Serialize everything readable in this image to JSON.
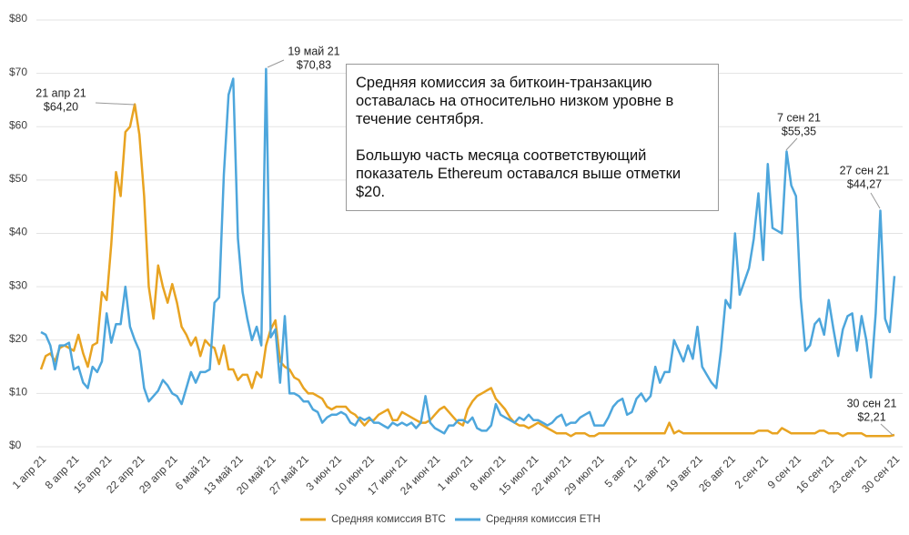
{
  "chart_data": {
    "type": "line",
    "categories": [
      "1 апр 21",
      null,
      null,
      null,
      null,
      null,
      null,
      "8 апр 21",
      null,
      null,
      null,
      null,
      null,
      null,
      "15 апр 21",
      null,
      null,
      null,
      null,
      null,
      null,
      "22 апр 21",
      null,
      null,
      null,
      null,
      null,
      null,
      "29 апр 21",
      null,
      null,
      null,
      null,
      null,
      null,
      "6 май 21",
      null,
      null,
      null,
      null,
      null,
      null,
      "13 май 21",
      null,
      null,
      null,
      null,
      null,
      null,
      "20 май 21",
      null,
      null,
      null,
      null,
      null,
      null,
      "27 май 21",
      null,
      null,
      null,
      null,
      null,
      null,
      "3 июн 21",
      null,
      null,
      null,
      null,
      null,
      null,
      "10 июн 21",
      null,
      null,
      null,
      null,
      null,
      null,
      "17 июн 21",
      null,
      null,
      null,
      null,
      null,
      null,
      "24 июн 21",
      null,
      null,
      null,
      null,
      null,
      null,
      "1 июл 21",
      null,
      null,
      null,
      null,
      null,
      null,
      "8 июл 21",
      null,
      null,
      null,
      null,
      null,
      null,
      "15 июл 21",
      null,
      null,
      null,
      null,
      null,
      null,
      "22 июл 21",
      null,
      null,
      null,
      null,
      null,
      null,
      "29 июл 21",
      null,
      null,
      null,
      null,
      null,
      null,
      "5 авг 21",
      null,
      null,
      null,
      null,
      null,
      null,
      "12 авг 21",
      null,
      null,
      null,
      null,
      null,
      null,
      "19 авг 21",
      null,
      null,
      null,
      null,
      null,
      null,
      "26 авг 21",
      null,
      null,
      null,
      null,
      null,
      null,
      "2 сен 21",
      null,
      null,
      null,
      null,
      null,
      null,
      "9 сен 21",
      null,
      null,
      null,
      null,
      null,
      null,
      "16 сен 21",
      null,
      null,
      null,
      null,
      null,
      null,
      "23 сен 21",
      null,
      null,
      null,
      null,
      null,
      null,
      "30 сен 21"
    ],
    "series": [
      {
        "name": "Средняя комиссия BTC",
        "color": "#e8a321",
        "values": [
          14.5,
          17,
          17.5,
          16,
          18.5,
          19,
          18.5,
          18,
          21,
          17.5,
          15,
          19,
          19.5,
          29,
          27.5,
          38,
          51.5,
          47,
          59,
          60,
          64.2,
          58.5,
          47,
          30,
          24,
          34,
          30,
          27,
          30.5,
          27,
          22.5,
          21,
          19,
          20.5,
          17,
          20,
          19,
          18.5,
          15.5,
          19,
          14.5,
          14.5,
          12.5,
          13.5,
          13.5,
          11,
          14,
          13,
          19,
          22,
          23.7,
          16,
          15,
          14.5,
          13,
          12.5,
          11,
          10,
          10,
          9.5,
          9,
          7.5,
          7,
          7.5,
          7.5,
          7.5,
          6.5,
          6,
          5,
          4,
          5,
          5,
          6,
          6.5,
          7,
          5,
          5,
          6.5,
          6,
          5.5,
          5,
          4.5,
          4.5,
          5,
          6,
          7,
          7.5,
          6.5,
          5.5,
          4.5,
          4,
          7,
          8.5,
          9.5,
          10,
          10.5,
          11,
          9,
          8,
          7,
          5.5,
          4.5,
          4,
          4,
          3.5,
          4,
          4.5,
          4,
          3.5,
          3,
          2.5,
          2.5,
          2.5,
          2,
          2.5,
          2.5,
          2.5,
          2,
          2,
          2.5,
          2.5,
          2.5,
          2.5,
          2.5,
          2.5,
          2.5,
          2.5,
          2.5,
          2.5,
          2.5,
          2.5,
          2.5,
          2.5,
          2.5,
          4.5,
          2.5,
          3,
          2.5,
          2.5,
          2.5,
          2.5,
          2.5,
          2.5,
          2.5,
          2.5,
          2.5,
          2.5,
          2.5,
          2.5,
          2.5,
          2.5,
          2.5,
          2.5,
          3,
          3,
          3,
          2.5,
          2.5,
          3.5,
          3,
          2.5,
          2.5,
          2.5,
          2.5,
          2.5,
          2.5,
          3,
          3,
          2.5,
          2.5,
          2.5,
          2,
          2.5,
          2.5,
          2.5,
          2.5,
          2,
          2,
          2,
          2,
          2,
          2,
          2.21
        ]
      },
      {
        "name": "Средняя комиссия ETH",
        "color": "#4da6dc",
        "values": [
          21.5,
          21,
          19,
          14.5,
          19,
          19,
          19.5,
          14.5,
          15,
          12,
          11,
          15,
          14,
          16,
          25,
          19.5,
          23,
          23,
          30,
          22.5,
          20,
          18,
          11,
          8.5,
          9.5,
          10.5,
          12.5,
          11.5,
          10,
          9.5,
          8,
          11,
          14,
          12,
          14,
          14,
          14.5,
          27,
          28,
          51,
          66,
          69,
          39,
          29,
          24,
          20,
          22.5,
          19,
          70.83,
          20.5,
          22,
          12,
          24.5,
          10,
          10,
          9.5,
          8.5,
          8.5,
          7,
          6.5,
          4.5,
          5.5,
          6,
          6,
          6.5,
          6,
          4.5,
          4,
          5.5,
          5,
          5.5,
          4.5,
          4.5,
          4,
          3.5,
          4.5,
          4,
          4.5,
          4,
          4.5,
          3.5,
          4.5,
          9.5,
          4.5,
          3.5,
          3,
          2.5,
          4,
          4,
          5,
          5,
          4.5,
          5.5,
          3.5,
          3,
          3,
          4,
          8,
          6,
          5.5,
          5,
          4.5,
          5.5,
          5,
          6,
          5,
          5,
          4.5,
          4,
          4.5,
          5.5,
          6,
          4,
          4.5,
          4.5,
          5.5,
          6,
          6.5,
          4,
          4,
          4,
          5.5,
          7.5,
          8.5,
          9,
          6,
          6.5,
          9,
          10,
          8.5,
          9.5,
          15,
          12,
          14,
          14,
          20,
          18,
          16,
          19,
          16.5,
          22.5,
          15,
          13.5,
          12,
          11,
          18,
          27.5,
          26,
          40,
          28.5,
          31,
          33.5,
          39,
          47.5,
          35,
          53,
          41,
          40.5,
          40,
          55.35,
          49,
          47,
          28,
          18,
          19,
          23,
          24,
          21,
          27.5,
          22,
          17,
          22,
          24.5,
          25,
          18,
          24.5,
          20,
          13,
          25,
          44.27,
          24,
          21.5,
          32
        ]
      }
    ],
    "ylim": [
      0,
      80
    ],
    "yticks": [
      {
        "value": 0,
        "label": "$0"
      },
      {
        "value": 10,
        "label": "$10"
      },
      {
        "value": 20,
        "label": "$20"
      },
      {
        "value": 30,
        "label": "$30"
      },
      {
        "value": 40,
        "label": "$40"
      },
      {
        "value": 50,
        "label": "$50"
      },
      {
        "value": 60,
        "label": "$60"
      },
      {
        "value": 70,
        "label": "$70"
      },
      {
        "value": 80,
        "label": "$80"
      }
    ],
    "grid": true,
    "legend": "bottom",
    "annotations": [
      {
        "date": "21 апр 21",
        "label": "$64,20"
      },
      {
        "date": "19 май 21",
        "label": "$70,83"
      },
      {
        "date": "7 сен 21",
        "label": "$55,35"
      },
      {
        "date": "27 сен 21",
        "label": "$44,27"
      },
      {
        "date": "30 сен 21",
        "label": "$2,21"
      }
    ],
    "note": [
      "Средняя комиссия за биткоин-транзакцию оставалась на относительно низком уровне в течение сентября.",
      "Большую часть месяца соответствующий показатель Ethereum оставался выше отметки $20."
    ]
  }
}
